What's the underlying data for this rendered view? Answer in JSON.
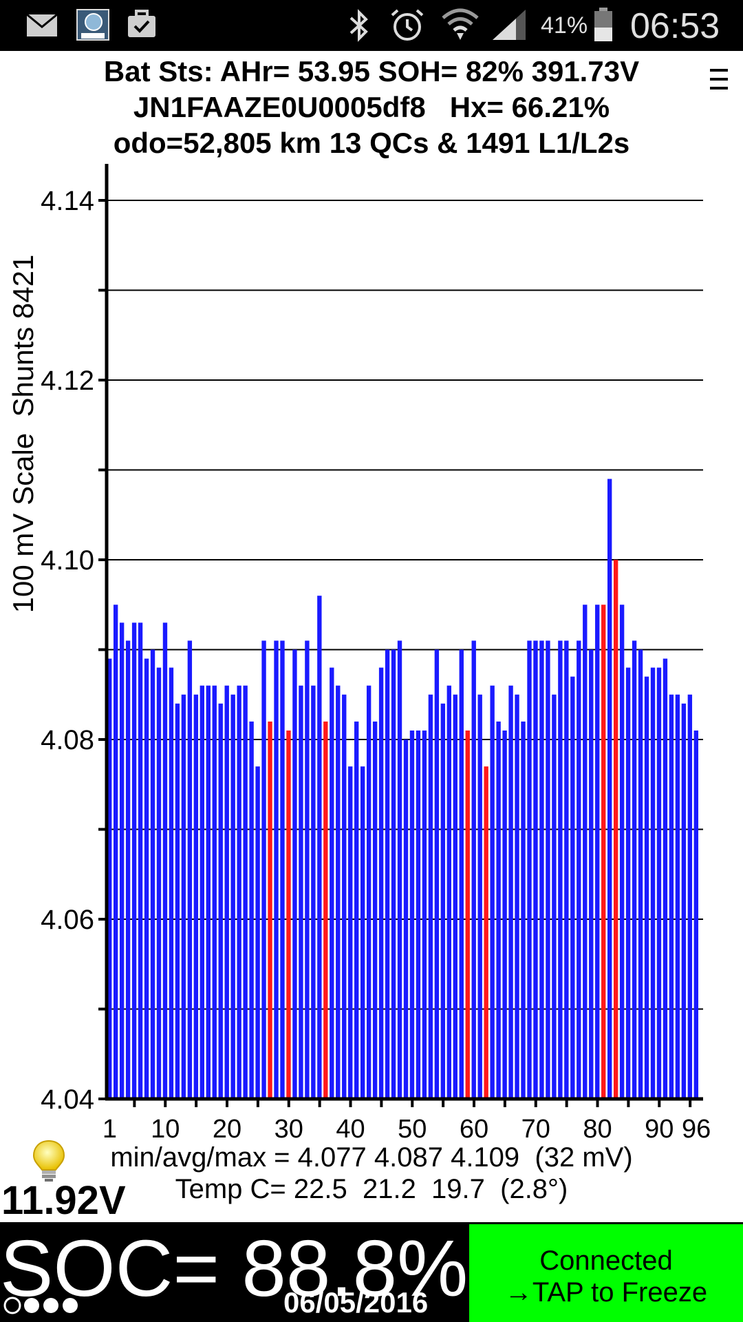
{
  "status_bar": {
    "battery_percent": "41%",
    "time": "06:53"
  },
  "header": {
    "line1": "Bat Sts: AHr= 53.95 SOH= 82% 391.73V",
    "line2": "JN1FAAZE0U0005df8   Hx= 66.21%",
    "line3": "odo=52,805 km 13 QCs & 1491 L1/L2s"
  },
  "chart_data": {
    "type": "bar",
    "ylabel": "100 mV Scale  Shunts 8421",
    "ylim": [
      4.04,
      4.14
    ],
    "yticks": [
      "4.14",
      "4.12",
      "4.10",
      "4.08",
      "4.06",
      "4.04"
    ],
    "xticks": [
      "1",
      "10",
      "20",
      "30",
      "40",
      "50",
      "60",
      "70",
      "80",
      "90",
      "96"
    ],
    "grid": true,
    "normal_color": "#1a1aff",
    "shunt_color": "#ff1a1a",
    "shunted_cells": [
      27,
      30,
      36,
      59,
      62,
      81,
      83
    ],
    "x": [
      1,
      2,
      3,
      4,
      5,
      6,
      7,
      8,
      9,
      10,
      11,
      12,
      13,
      14,
      15,
      16,
      17,
      18,
      19,
      20,
      21,
      22,
      23,
      24,
      25,
      26,
      27,
      28,
      29,
      30,
      31,
      32,
      33,
      34,
      35,
      36,
      37,
      38,
      39,
      40,
      41,
      42,
      43,
      44,
      45,
      46,
      47,
      48,
      49,
      50,
      51,
      52,
      53,
      54,
      55,
      56,
      57,
      58,
      59,
      60,
      61,
      62,
      63,
      64,
      65,
      66,
      67,
      68,
      69,
      70,
      71,
      72,
      73,
      74,
      75,
      76,
      77,
      78,
      79,
      80,
      81,
      82,
      83,
      84,
      85,
      86,
      87,
      88,
      89,
      90,
      91,
      92,
      93,
      94,
      95,
      96
    ],
    "values": [
      4.089,
      4.095,
      4.093,
      4.091,
      4.093,
      4.093,
      4.089,
      4.09,
      4.088,
      4.093,
      4.088,
      4.084,
      4.085,
      4.091,
      4.085,
      4.086,
      4.086,
      4.086,
      4.084,
      4.086,
      4.085,
      4.086,
      4.086,
      4.082,
      4.077,
      4.091,
      4.082,
      4.091,
      4.091,
      4.081,
      4.09,
      4.086,
      4.091,
      4.086,
      4.096,
      4.082,
      4.088,
      4.086,
      4.085,
      4.077,
      4.082,
      4.077,
      4.086,
      4.082,
      4.088,
      4.09,
      4.09,
      4.091,
      4.08,
      4.081,
      4.081,
      4.081,
      4.085,
      4.09,
      4.084,
      4.086,
      4.085,
      4.09,
      4.081,
      4.091,
      4.085,
      4.077,
      4.086,
      4.082,
      4.081,
      4.086,
      4.085,
      4.082,
      4.091,
      4.091,
      4.091,
      4.091,
      4.085,
      4.091,
      4.091,
      4.087,
      4.091,
      4.095,
      4.09,
      4.095,
      4.095,
      4.109,
      4.1,
      4.095,
      4.088,
      4.091,
      4.09,
      4.087,
      4.088,
      4.088,
      4.089,
      4.085,
      4.085,
      4.084,
      4.085,
      4.081
    ]
  },
  "stats": {
    "voltage_line": "min/avg/max = 4.077 4.087 4.109  (32 mV)",
    "temp_line": "Temp C= 22.5  21.2  19.7  (2.8°)"
  },
  "aux_voltage": "11.92V",
  "soc": "SOC= 88.8%",
  "date": "06/05/2016",
  "connected_button": {
    "line1": "Connected",
    "line2": "→TAP to Freeze"
  },
  "icons": [
    "mail-icon",
    "app-icon",
    "briefcase-icon",
    "bluetooth-icon",
    "alarm-icon",
    "wifi-icon",
    "signal-icon",
    "battery-icon",
    "menu-icon",
    "bulb-icon",
    "dots-icon"
  ]
}
